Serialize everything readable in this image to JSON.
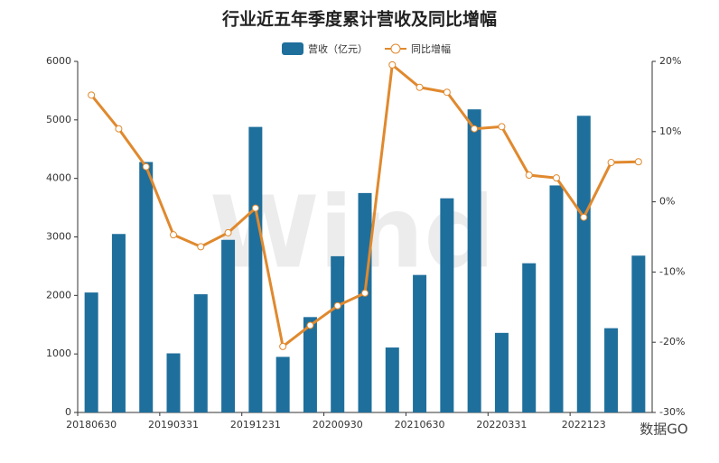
{
  "chart_data": {
    "type": "bar-line",
    "title": "行业近五年季度累计营收及同比增幅",
    "categories": [
      "20180630",
      null,
      null,
      "20190331",
      null,
      null,
      "20191231",
      null,
      null,
      "20200930",
      null,
      null,
      "20210630",
      null,
      null,
      "20220331",
      null,
      null,
      "2022123",
      null,
      null
    ],
    "series": [
      {
        "name": "营收（亿元）",
        "color": "#1f6f9c",
        "type": "bar",
        "values": [
          2050,
          3050,
          4280,
          1010,
          2020,
          2950,
          4880,
          950,
          1630,
          2670,
          3750,
          1110,
          2350,
          3660,
          5180,
          1360,
          2550,
          3880,
          5070,
          1440,
          2680
        ]
      },
      {
        "name": "同比增幅",
        "color": "#e0892e",
        "type": "line",
        "axis": "y2",
        "values": [
          15.2,
          10.4,
          5.0,
          -4.7,
          -6.4,
          -4.4,
          -0.9,
          -20.6,
          -17.6,
          -14.8,
          -13.0,
          19.5,
          16.3,
          15.6,
          10.4,
          10.7,
          3.8,
          3.4,
          -2.2,
          5.6,
          5.7
        ]
      }
    ],
    "ylim": [
      0,
      6000
    ],
    "yticks": [
      0,
      1000,
      2000,
      3000,
      4000,
      5000,
      6000
    ],
    "y2lim": [
      -30,
      20
    ],
    "y2ticks": [
      {
        "value": -30,
        "label": "-30%"
      },
      {
        "value": -20,
        "label": "-20%"
      },
      {
        "value": -10,
        "label": "-10%"
      },
      {
        "value": 0,
        "label": "0%"
      },
      {
        "value": 10,
        "label": "10%"
      },
      {
        "value": 20,
        "label": "20%"
      }
    ],
    "watermark": "Wind",
    "footer": "数据GO"
  }
}
